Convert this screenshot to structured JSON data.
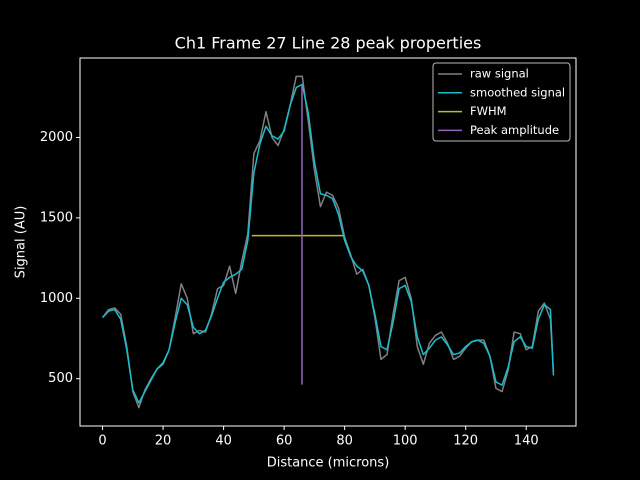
{
  "chart_data": {
    "type": "line",
    "title": "Ch1 Frame 27 Line 28 peak properties",
    "xlabel": "Distance (microns)",
    "ylabel": "Signal (AU)",
    "x": [
      0,
      2,
      4,
      6,
      8,
      10,
      12,
      14,
      16,
      18,
      20,
      22,
      24,
      26,
      28,
      30,
      32,
      34,
      36,
      38,
      40,
      42,
      44,
      46,
      48,
      50,
      52,
      54,
      56,
      58,
      60,
      62,
      64,
      66,
      68,
      70,
      72,
      74,
      76,
      78,
      80,
      82,
      84,
      86,
      88,
      90,
      92,
      94,
      96,
      98,
      100,
      102,
      104,
      106,
      108,
      110,
      112,
      114,
      116,
      118,
      120,
      122,
      124,
      126,
      128,
      130,
      132,
      134,
      136,
      138,
      140,
      142,
      144,
      146,
      148,
      149
    ],
    "series": [
      {
        "name": "raw signal",
        "color": "#808080",
        "values": [
          880,
          930,
          940,
          900,
          700,
          420,
          320,
          430,
          500,
          560,
          590,
          680,
          880,
          1090,
          1000,
          780,
          800,
          790,
          900,
          1060,
          1080,
          1200,
          1030,
          1230,
          1400,
          1900,
          1980,
          2160,
          2000,
          1950,
          2050,
          2200,
          2380,
          2380,
          2100,
          1800,
          1570,
          1660,
          1640,
          1560,
          1380,
          1270,
          1150,
          1180,
          1080,
          880,
          620,
          650,
          900,
          1110,
          1130,
          1000,
          700,
          590,
          720,
          770,
          790,
          720,
          620,
          640,
          690,
          730,
          740,
          740,
          640,
          440,
          420,
          550,
          790,
          780,
          680,
          700,
          920,
          970,
          870,
          540
        ]
      },
      {
        "name": "smoothed signal",
        "color": "#17becf",
        "values": [
          880,
          920,
          930,
          870,
          680,
          430,
          350,
          420,
          490,
          560,
          600,
          680,
          850,
          1000,
          960,
          820,
          780,
          800,
          890,
          1000,
          1100,
          1130,
          1150,
          1180,
          1360,
          1780,
          1960,
          2070,
          2010,
          1990,
          2040,
          2200,
          2310,
          2330,
          2150,
          1850,
          1650,
          1640,
          1620,
          1520,
          1360,
          1260,
          1200,
          1170,
          1080,
          900,
          700,
          680,
          850,
          1060,
          1080,
          980,
          760,
          650,
          690,
          740,
          760,
          710,
          650,
          660,
          700,
          730,
          740,
          720,
          640,
          480,
          460,
          570,
          730,
          760,
          700,
          690,
          870,
          960,
          930,
          520
        ]
      },
      {
        "name": "FWHM",
        "color": "#bcbd22",
        "x": [
          49.3,
          79.5
        ],
        "values": [
          1390,
          1390
        ]
      },
      {
        "name": "Peak amplitude",
        "color": "#9467bd",
        "x": [
          65.9,
          65.9
        ],
        "values": [
          463,
          2330
        ]
      }
    ],
    "xlim": [
      -7.45,
      156.45
    ],
    "ylim": [
      206,
      2494
    ],
    "xticks": [
      0,
      20,
      40,
      60,
      80,
      100,
      120,
      140
    ],
    "yticks": [
      500,
      1000,
      1500,
      2000
    ],
    "legend": "upper right"
  }
}
